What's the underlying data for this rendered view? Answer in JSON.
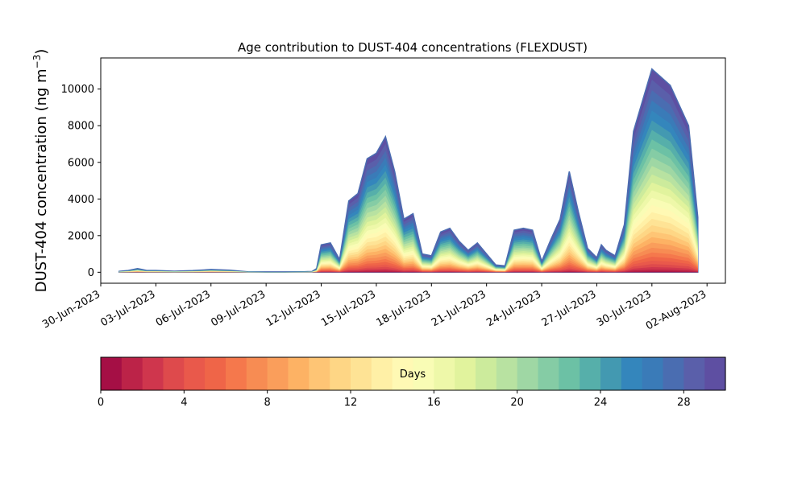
{
  "chart_data": {
    "type": "area",
    "title": "Age contribution to DUST-404 concentrations (FLEXDUST)",
    "ylabel_main": "DUST-404 concentration (ng m",
    "ylabel_sup": "−3",
    "ylabel_close": ")",
    "xlabel": "",
    "ylim": [
      -600,
      11700
    ],
    "xlim": [
      "2023-06-30",
      "2023-08-03"
    ],
    "y_ticks": [
      0,
      2000,
      4000,
      6000,
      8000,
      10000
    ],
    "y_tick_labels": [
      "0",
      "2000",
      "4000",
      "6000",
      "8000",
      "10000"
    ],
    "x_ticks": [
      "2023-06-30",
      "2023-07-03",
      "2023-07-06",
      "2023-07-09",
      "2023-07-12",
      "2023-07-15",
      "2023-07-18",
      "2023-07-21",
      "2023-07-24",
      "2023-07-27",
      "2023-07-30",
      "2023-08-02"
    ],
    "x_tick_labels": [
      "30-Jun-2023",
      "03-Jul-2023",
      "06-Jul-2023",
      "09-Jul-2023",
      "12-Jul-2023",
      "15-Jul-2023",
      "18-Jul-2023",
      "21-Jul-2023",
      "24-Jul-2023",
      "27-Jul-2023",
      "30-Jul-2023",
      "02-Aug-2023"
    ],
    "stacked": true,
    "age_bins": 30,
    "total": {
      "x": [
        "2023-07-01",
        "2023-07-01 12:00",
        "2023-07-02",
        "2023-07-02 06:00",
        "2023-07-02 12:00",
        "2023-07-03",
        "2023-07-04",
        "2023-07-05",
        "2023-07-06",
        "2023-07-07",
        "2023-07-08",
        "2023-07-09",
        "2023-07-10",
        "2023-07-11",
        "2023-07-11 12:00",
        "2023-07-11 18:00",
        "2023-07-12",
        "2023-07-12 12:00",
        "2023-07-13",
        "2023-07-13 12:00",
        "2023-07-14",
        "2023-07-14 12:00",
        "2023-07-15",
        "2023-07-15 12:00",
        "2023-07-16",
        "2023-07-16 12:00",
        "2023-07-17",
        "2023-07-17 12:00",
        "2023-07-18",
        "2023-07-18 12:00",
        "2023-07-19",
        "2023-07-19 12:00",
        "2023-07-20",
        "2023-07-20 12:00",
        "2023-07-21",
        "2023-07-21 12:00",
        "2023-07-22",
        "2023-07-22 12:00",
        "2023-07-23",
        "2023-07-23 12:00",
        "2023-07-24",
        "2023-07-24 12:00",
        "2023-07-25",
        "2023-07-25 12:00",
        "2023-07-26",
        "2023-07-26 12:00",
        "2023-07-27",
        "2023-07-27 06:00",
        "2023-07-27 12:00",
        "2023-07-28",
        "2023-07-28 12:00",
        "2023-07-29",
        "2023-07-30",
        "2023-07-31",
        "2023-08-01",
        "2023-08-01 12:00"
      ],
      "y": [
        50,
        100,
        200,
        150,
        100,
        100,
        60,
        90,
        150,
        110,
        30,
        20,
        20,
        30,
        40,
        200,
        1500,
        1600,
        700,
        3900,
        4300,
        6200,
        6500,
        7400,
        5500,
        2900,
        3200,
        1000,
        900,
        2200,
        2400,
        1700,
        1200,
        1600,
        1000,
        400,
        350,
        2300,
        2400,
        2300,
        600,
        1800,
        2900,
        5500,
        3300,
        1300,
        800,
        1500,
        1200,
        900,
        2600,
        7700,
        11100,
        10200,
        8000,
        3000
      ]
    }
  },
  "colorbar": {
    "label": "Days",
    "ticks": [
      0,
      4,
      8,
      12,
      16,
      20,
      24,
      28
    ],
    "tick_labels": [
      "0",
      "4",
      "8",
      "12",
      "16",
      "20",
      "24",
      "28"
    ],
    "range": [
      0,
      30
    ],
    "colors": [
      "#a50f45",
      "#bc2348",
      "#cf364d",
      "#de4a4c",
      "#e9594b",
      "#ef6548",
      "#f5784c",
      "#f78c53",
      "#fa9e5b",
      "#fdb264",
      "#fec575",
      "#fed685",
      "#fee395",
      "#fff0a6",
      "#fff9b4",
      "#f9fcb5",
      "#eef8a9",
      "#e1f39d",
      "#cceb9c",
      "#b8e2a1",
      "#9fd7a4",
      "#85cca5",
      "#6cc1a5",
      "#56afaa",
      "#4399b1",
      "#3486bc",
      "#3a7bb8",
      "#4a6db1",
      "#5a5faa",
      "#5e4fa2"
    ]
  }
}
